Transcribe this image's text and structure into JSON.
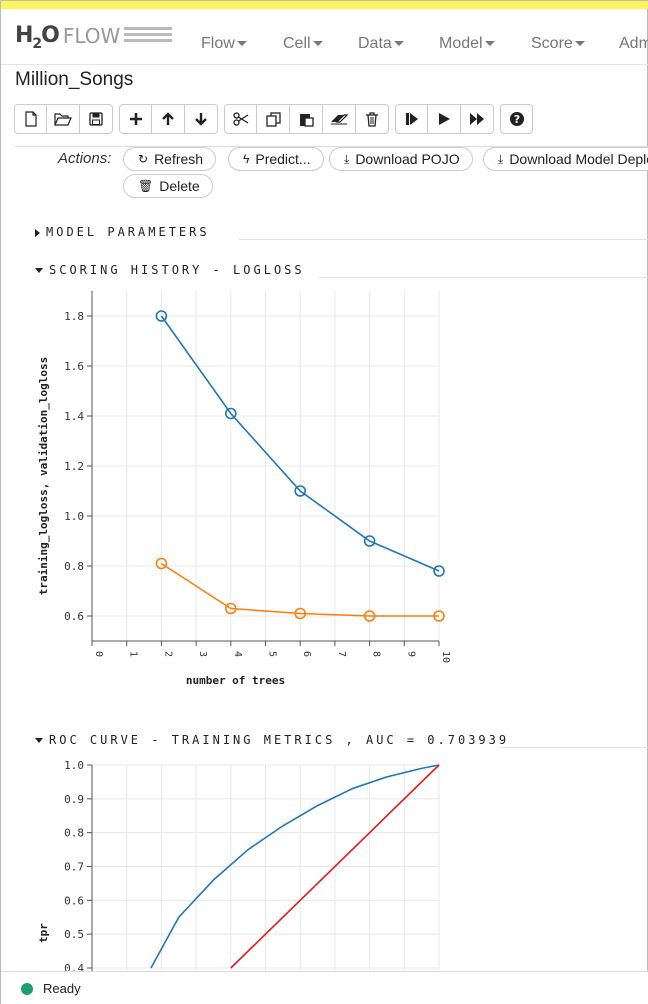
{
  "app": {
    "logo_main": "H",
    "logo_sub": "2",
    "logo_o": "O",
    "logo_flow": "FLOW",
    "accent_color": "#fff45a"
  },
  "nav": {
    "flow": "Flow",
    "cell": "Cell",
    "data": "Data",
    "model": "Model",
    "score": "Score",
    "admin": "Adm"
  },
  "notebook": {
    "title": "Million_Songs"
  },
  "toolbar": {
    "icons": [
      "new-file-icon",
      "open-folder-icon",
      "save-icon",
      "plus-icon",
      "arrow-up-icon",
      "arrow-down-icon",
      "scissors-icon",
      "copy-icon",
      "paste-icon",
      "eraser-icon",
      "trash-icon",
      "step-forward-icon",
      "play-icon",
      "fast-forward-icon",
      "help-icon"
    ]
  },
  "actions": {
    "label": "Actions:",
    "refresh": "Refresh",
    "predict": "Predict...",
    "download_pojo": "Download POJO",
    "download_model": "Download Model Deployment Package",
    "delete": "Delete"
  },
  "sections": {
    "model_parameters": "MODEL PARAMETERS",
    "scoring_history": "SCORING HISTORY - LOGLOSS",
    "roc_curve": "ROC CURVE - TRAINING METRICS , AUC = 0.703939"
  },
  "chart_data": [
    {
      "type": "line",
      "title": "SCORING HISTORY - LOGLOSS",
      "xlabel": "number of trees",
      "ylabel": "training_logloss, validation_logloss",
      "xlim": [
        0,
        10
      ],
      "ylim": [
        0.5,
        1.9
      ],
      "x_ticks": [
        0,
        1,
        2,
        3,
        4,
        5,
        6,
        7,
        8,
        9,
        10
      ],
      "y_ticks": [
        0.6,
        0.8,
        1.0,
        1.2,
        1.4,
        1.6,
        1.8
      ],
      "grid": true,
      "series": [
        {
          "x": [
            2,
            4,
            6,
            8,
            10
          ],
          "values": [
            1.8,
            1.41,
            1.1,
            0.9,
            0.78
          ],
          "color": "#1f77b4"
        },
        {
          "x": [
            2,
            4,
            6,
            8,
            10
          ],
          "values": [
            0.81,
            0.63,
            0.61,
            0.6,
            0.6
          ],
          "color": "#ff7f0e"
        }
      ]
    },
    {
      "type": "line",
      "title": "ROC CURVE - TRAINING METRICS , AUC = 0.703939",
      "xlabel": "",
      "ylabel": "tpr",
      "xlim": [
        0,
        1
      ],
      "ylim": [
        0.4,
        1.0
      ],
      "y_ticks": [
        0.4,
        0.5,
        0.6,
        0.7,
        0.8,
        0.9,
        1.0
      ],
      "grid": true,
      "series": [
        {
          "x": [
            0.17,
            0.25,
            0.35,
            0.45,
            0.55,
            0.65,
            0.75,
            0.85,
            0.95,
            1.0
          ],
          "values": [
            0.4,
            0.55,
            0.66,
            0.75,
            0.82,
            0.88,
            0.93,
            0.965,
            0.99,
            1.0
          ],
          "color": "#1f77b4"
        },
        {
          "x": [
            0.4,
            1.0
          ],
          "values": [
            0.4,
            1.0
          ],
          "color": "#e41a1c"
        }
      ]
    }
  ],
  "status": {
    "text": "Ready",
    "color": "#1e9e6e"
  }
}
